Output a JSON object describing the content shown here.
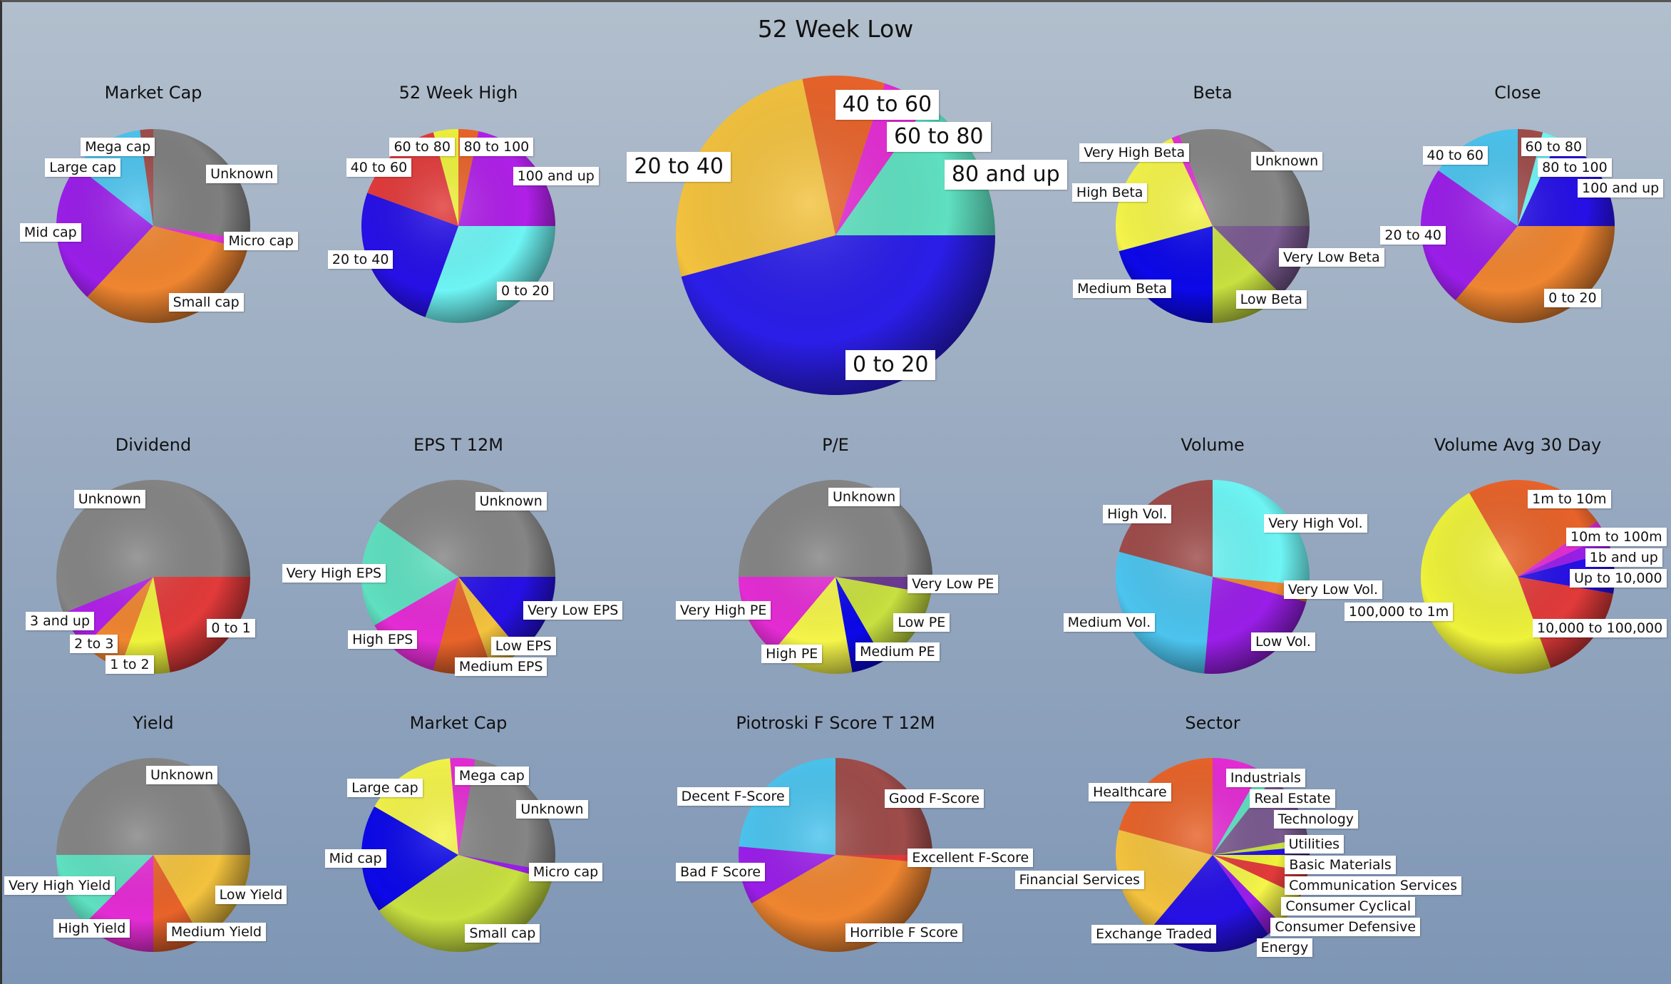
{
  "chart_data": [
    {
      "type": "pie",
      "title": "52 Week Low",
      "start_angle": -12,
      "slices": [
        {
          "label": "40 to 60",
          "value": 30,
          "color": "#e8632a"
        },
        {
          "label": "60 to 80",
          "value": 17,
          "color": "#e42cd4"
        },
        {
          "label": "80  and up",
          "value": 55,
          "color": "#5fe0c0"
        },
        {
          "label": "0 to 20",
          "value": 165,
          "color": "#2b1ee8"
        },
        {
          "label": "20 to 40",
          "value": 93,
          "color": "#f3c23e"
        }
      ]
    },
    {
      "type": "pie",
      "title": "Market Cap",
      "start_angle": -8,
      "slices": [
        {
          "label": "Mega cap",
          "value": 8,
          "color": "#9e4c4a"
        },
        {
          "label": "Unknown",
          "value": 98,
          "color": "#7f7f7f"
        },
        {
          "label": "Micro cap",
          "value": 6,
          "color": "#e432d8"
        },
        {
          "label": "Small cap",
          "value": 119,
          "color": "#ef8530"
        },
        {
          "label": "Mid cap",
          "value": 85,
          "color": "#9a1ee8"
        },
        {
          "label": "Large cap",
          "value": 44,
          "color": "#4cc4ee"
        }
      ]
    },
    {
      "type": "pie",
      "title": "52 Week High",
      "start_angle": -15,
      "slices": [
        {
          "label": "60 to 80",
          "value": 15,
          "color": "#eef23a"
        },
        {
          "label": "80 to 100",
          "value": 12,
          "color": "#e8632a"
        },
        {
          "label": "100  and up",
          "value": 78,
          "color": "#b020e8"
        },
        {
          "label": "0 to 20",
          "value": 110,
          "color": "#6ef4f4"
        },
        {
          "label": "20 to 40",
          "value": 90,
          "color": "#2610e6"
        },
        {
          "label": "40 to 60",
          "value": 55,
          "color": "#e23a3a"
        }
      ]
    },
    {
      "type": "pie",
      "title": "Beta",
      "start_angle": -20,
      "slices": [
        {
          "label": "Unknown",
          "value": 110,
          "color": "#858585"
        },
        {
          "label": "Very Low Beta",
          "value": 45,
          "color": "#7a5a90"
        },
        {
          "label": "Low Beta",
          "value": 45,
          "color": "#c8e040"
        },
        {
          "label": "Medium Beta",
          "value": 75,
          "color": "#0c08e8"
        },
        {
          "label": "High Beta",
          "value": 80,
          "color": "#f4f44a"
        },
        {
          "label": "Very High Beta",
          "value": 5,
          "color": "#e032d0"
        }
      ]
    },
    {
      "type": "pie",
      "title": "Close",
      "start_angle": 0,
      "slices": [
        {
          "label": "60 to 80",
          "value": 15,
          "color": "#9e4c4a"
        },
        {
          "label": "80 to 100",
          "value": 10,
          "color": "#6ef4f4"
        },
        {
          "label": "100  and up",
          "value": 65,
          "color": "#2610e6"
        },
        {
          "label": "0 to 20",
          "value": 130,
          "color": "#ef8530"
        },
        {
          "label": "20 to 40",
          "value": 85,
          "color": "#9a1ee8"
        },
        {
          "label": "40 to 60",
          "value": 55,
          "color": "#4cc4ee"
        }
      ]
    },
    {
      "type": "pie",
      "title": "Dividend",
      "start_angle": -112,
      "slices": [
        {
          "label": "Unknown",
          "value": 202,
          "color": "#858585"
        },
        {
          "label": "0 to 1",
          "value": 80,
          "color": "#e23a3a"
        },
        {
          "label": "1 to 2",
          "value": 30,
          "color": "#eef23a"
        },
        {
          "label": "2 to 3",
          "value": 25,
          "color": "#ef8530"
        },
        {
          "label": "3  and up",
          "value": 23,
          "color": "#b020e8"
        }
      ]
    },
    {
      "type": "pie",
      "title": "EPS T 12M",
      "start_angle": -55,
      "slices": [
        {
          "label": "Unknown",
          "value": 145,
          "color": "#858585"
        },
        {
          "label": "Very Low EPS",
          "value": 50,
          "color": "#2610e6"
        },
        {
          "label": "Low EPS",
          "value": 20,
          "color": "#f3c23e"
        },
        {
          "label": "Medium EPS",
          "value": 35,
          "color": "#e8632a"
        },
        {
          "label": "High EPS",
          "value": 45,
          "color": "#e42cd4"
        },
        {
          "label": "Very High EPS",
          "value": 65,
          "color": "#5fe0c0"
        }
      ]
    },
    {
      "type": "pie",
      "title": "P/E",
      "start_angle": -90,
      "slices": [
        {
          "label": "Unknown",
          "value": 180,
          "color": "#858585"
        },
        {
          "label": "Very Low PE",
          "value": 10,
          "color": "#6a3a90"
        },
        {
          "label": "Low PE",
          "value": 50,
          "color": "#c8e040"
        },
        {
          "label": "Medium PE",
          "value": 20,
          "color": "#0c08e8"
        },
        {
          "label": "High PE",
          "value": 50,
          "color": "#f4f44a"
        },
        {
          "label": "Very High PE",
          "value": 50,
          "color": "#e42cd4"
        }
      ]
    },
    {
      "type": "pie",
      "title": "Volume",
      "start_angle": 0,
      "slices": [
        {
          "label": "Very High Vol.",
          "value": 95,
          "color": "#6ef4f4"
        },
        {
          "label": "Very Low Vol.",
          "value": 10,
          "color": "#ef8530"
        },
        {
          "label": "Low Vol.",
          "value": 80,
          "color": "#9a1ee8"
        },
        {
          "label": "Medium Vol.",
          "value": 100,
          "color": "#4cc4ee"
        },
        {
          "label": "High Vol.",
          "value": 75,
          "color": "#9e4c4a"
        }
      ]
    },
    {
      "type": "pie",
      "title": "Volume Avg  30 Day",
      "start_angle": -30,
      "slices": [
        {
          "label": "1m to 10m",
          "value": 85,
          "color": "#e8632a"
        },
        {
          "label": "10m to 100m",
          "value": 10,
          "color": "#e42cd4"
        },
        {
          "label": "1b  and up",
          "value": 10,
          "color": "#9a1ee8"
        },
        {
          "label": "Up to 10,000",
          "value": 25,
          "color": "#2610e6"
        },
        {
          "label": "10,000 to 100,000",
          "value": 60,
          "color": "#e23a3a"
        },
        {
          "label": "100,000 to 1m",
          "value": 170,
          "color": "#eef23a"
        }
      ]
    },
    {
      "type": "pie",
      "title": "Yield",
      "start_angle": -90,
      "slices": [
        {
          "label": "Unknown",
          "value": 180,
          "color": "#858585"
        },
        {
          "label": "Low Yield",
          "value": 60,
          "color": "#f3c23e"
        },
        {
          "label": "Medium Yield",
          "value": 30,
          "color": "#e8632a"
        },
        {
          "label": "High Yield",
          "value": 45,
          "color": "#e42cd4"
        },
        {
          "label": "Very High Yield",
          "value": 45,
          "color": "#5fe0c0"
        }
      ]
    },
    {
      "type": "pie",
      "title": "Market Cap",
      "start_angle": -5,
      "slices": [
        {
          "label": "Mega cap",
          "value": 15,
          "color": "#e42cd4"
        },
        {
          "label": "Unknown",
          "value": 90,
          "color": "#858585"
        },
        {
          "label": "Micro cap",
          "value": 5,
          "color": "#9a1ee8"
        },
        {
          "label": "Small cap",
          "value": 130,
          "color": "#c8e040"
        },
        {
          "label": "Mid cap",
          "value": 65,
          "color": "#0c08e8"
        },
        {
          "label": "Large cap",
          "value": 55,
          "color": "#f4f44a"
        }
      ]
    },
    {
      "type": "pie",
      "title": "Piotroski F Score T 12M",
      "start_angle": 0,
      "slices": [
        {
          "label": "Good F-Score",
          "value": 90,
          "color": "#9e4c4a"
        },
        {
          "label": "Excellent F-Score",
          "value": 5,
          "color": "#e23a3a"
        },
        {
          "label": "Horrible F Score",
          "value": 145,
          "color": "#ef8530"
        },
        {
          "label": "Bad F Score",
          "value": 35,
          "color": "#9a1ee8"
        },
        {
          "label": "Decent F-Score",
          "value": 85,
          "color": "#4cc4ee"
        }
      ]
    },
    {
      "type": "pie",
      "title": "Sector",
      "start_angle": 0,
      "slices": [
        {
          "label": "Industrials",
          "value": 30,
          "color": "#e42cd4"
        },
        {
          "label": "Real Estate",
          "value": 8,
          "color": "#5fe0c0"
        },
        {
          "label": "Technology",
          "value": 42,
          "color": "#7a5a90"
        },
        {
          "label": "Utilities",
          "value": 5,
          "color": "#c8e040"
        },
        {
          "label": "Basic Materials",
          "value": 5,
          "color": "#2610e6"
        },
        {
          "label": "Communication Services",
          "value": 10,
          "color": "#eef23a"
        },
        {
          "label": "Consumer Cyclical",
          "value": 15,
          "color": "#e23a3a"
        },
        {
          "label": "Consumer Defensive",
          "value": 20,
          "color": "#f4f44a"
        },
        {
          "label": "Energy",
          "value": 10,
          "color": "#9a1ee8"
        },
        {
          "label": "Exchange Traded",
          "value": 75,
          "color": "#2610e6"
        },
        {
          "label": "Financial Services",
          "value": 65,
          "color": "#f3c23e"
        },
        {
          "label": "Healthcare",
          "value": 75,
          "color": "#e8632a"
        }
      ]
    }
  ]
}
